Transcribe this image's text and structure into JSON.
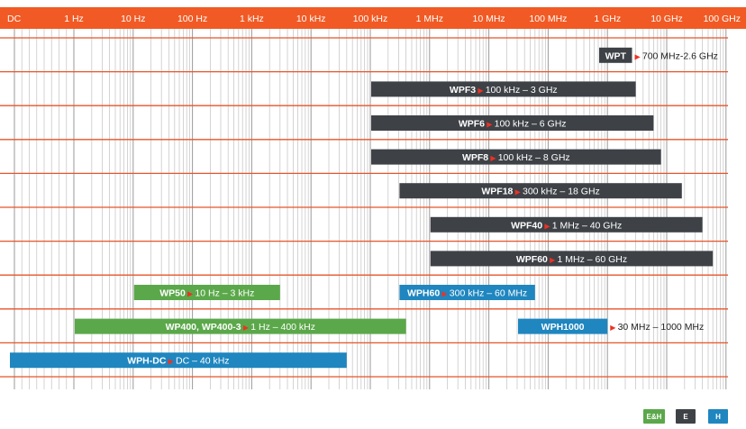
{
  "colors": {
    "header": "#f15a24",
    "grid_major": "#e8542a",
    "grid_minor": "#c9c9c9",
    "bar_dark": "#3e4247",
    "bar_green": "#5ba84a",
    "bar_blue": "#1f86bf",
    "arrow": "#ee3124",
    "outside_label": "#222222"
  },
  "chart_data": {
    "type": "bar",
    "orientation": "horizontal",
    "x_scale": "log",
    "xlim": [
      "DC",
      "100 GHz"
    ],
    "tick_labels": [
      "DC",
      "1 Hz",
      "10 Hz",
      "100 Hz",
      "1 kHz",
      "10 kHz",
      "100 kHz",
      "1 MHz",
      "10 MHz",
      "100 MHz",
      "1 GHz",
      "10 GHz",
      "100 GHz"
    ],
    "grid": true,
    "bars": [
      {
        "name": "WPT",
        "range_text": "700 MHz-2.6 GHz",
        "start_hz": 700000000,
        "end_hz": 2600000000,
        "color_key": "bar_dark",
        "label_outside": true
      },
      {
        "name": "WPF3",
        "range_text": "100 kHz – 3 GHz",
        "start_hz": 100000,
        "end_hz": 3000000000,
        "color_key": "bar_dark",
        "label_outside": false
      },
      {
        "name": "WPF6",
        "range_text": "100 kHz – 6 GHz",
        "start_hz": 100000,
        "end_hz": 6000000000,
        "color_key": "bar_dark",
        "label_outside": false
      },
      {
        "name": "WPF8",
        "range_text": "100 kHz – 8 GHz",
        "start_hz": 100000,
        "end_hz": 8000000000,
        "color_key": "bar_dark",
        "label_outside": false
      },
      {
        "name": "WPF18",
        "range_text": "300 kHz – 18 GHz",
        "start_hz": 300000,
        "end_hz": 18000000000,
        "color_key": "bar_dark",
        "label_outside": false
      },
      {
        "name": "WPF40",
        "range_text": "1 MHz – 40 GHz",
        "start_hz": 1000000,
        "end_hz": 40000000000,
        "color_key": "bar_dark",
        "label_outside": false
      },
      {
        "name": "WPF60",
        "range_text": "1 MHz – 60 GHz",
        "start_hz": 1000000,
        "end_hz": 60000000000,
        "color_key": "bar_dark",
        "label_outside": false
      },
      {
        "name": "WP50",
        "range_text": "10 Hz – 3 kHz",
        "start_hz": 10,
        "end_hz": 3000,
        "color_key": "bar_green",
        "label_outside": false
      },
      {
        "name": "WPH60",
        "range_text": "300 kHz – 60 MHz",
        "start_hz": 300000,
        "end_hz": 60000000,
        "color_key": "bar_blue",
        "label_outside": false
      },
      {
        "name": "WP400, WP400-3",
        "range_text": "1 Hz – 400 kHz",
        "start_hz": 1,
        "end_hz": 400000,
        "color_key": "bar_green",
        "label_outside": false
      },
      {
        "name": "WPH1000",
        "range_text": "30 MHz – 1000 MHz",
        "start_hz": 30000000,
        "end_hz": 1000000000,
        "color_key": "bar_blue",
        "label_outside": true
      },
      {
        "name": "WPH-DC",
        "range_text": "DC – 40 kHz",
        "start_hz": 0,
        "end_hz": 40000,
        "color_key": "bar_blue",
        "label_outside": false
      }
    ],
    "row_of_bar": [
      0,
      1,
      2,
      3,
      4,
      5,
      6,
      7,
      7,
      8,
      8,
      9
    ]
  },
  "legend": [
    {
      "label": "E&H",
      "color_key": "bar_green"
    },
    {
      "label": "E",
      "color_key": "bar_dark"
    },
    {
      "label": "H",
      "color_key": "bar_blue"
    }
  ]
}
